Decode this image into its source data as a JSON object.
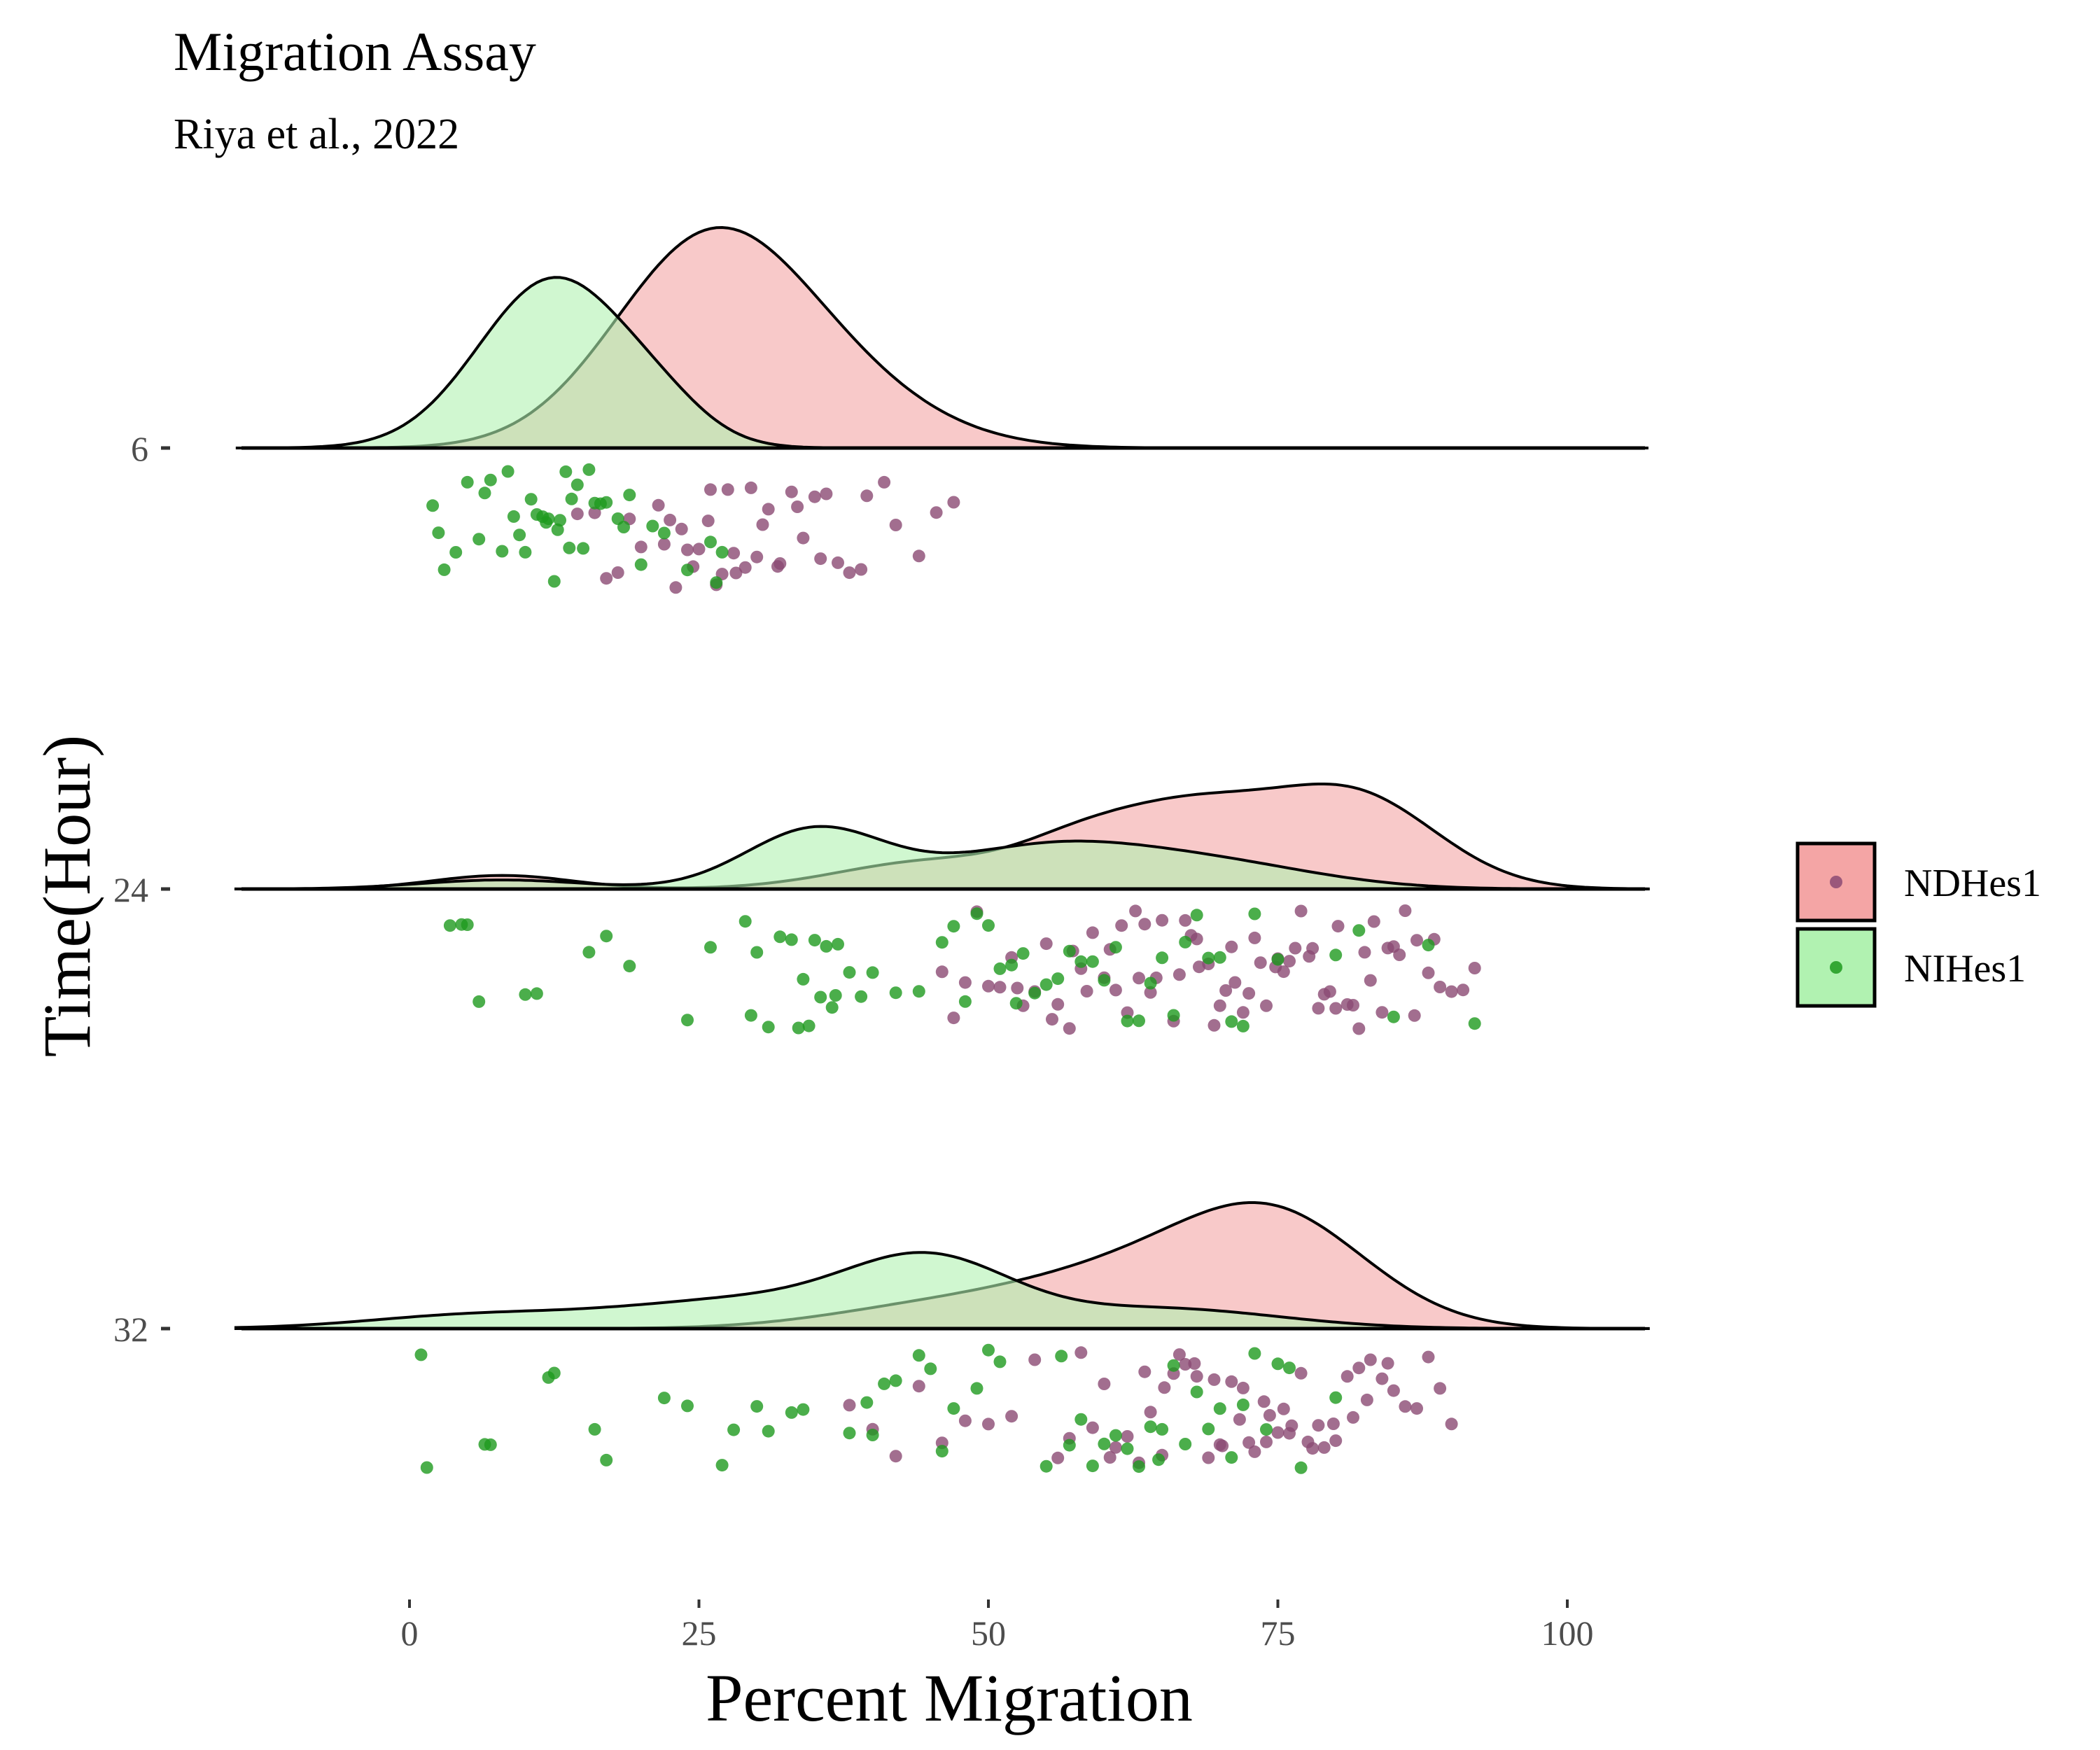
{
  "chart_data": {
    "type": "raincloud",
    "title": "Migration Assay",
    "subtitle": "Riya et al., 2022",
    "xlabel": "Percent Migration",
    "ylabel": "Time(Hour)",
    "xlim": [
      -15,
      107
    ],
    "x_ticks": [
      0,
      25,
      50,
      75,
      100
    ],
    "y_categories": [
      "6",
      "24",
      "32"
    ],
    "legend_position": "right",
    "groups": [
      {
        "name": "NDHes1",
        "fill": "#f4a5a5",
        "point_color": "#8b4a73",
        "density_components": {
          "6": [
            [
              1.0,
              25,
              8
            ],
            [
              0.45,
              34,
              9
            ]
          ],
          "24": [
            [
              0.15,
              8,
              6
            ],
            [
              0.3,
              45,
              8
            ],
            [
              0.9,
              67,
              8
            ],
            [
              0.95,
              82,
              7
            ],
            [
              0.2,
              57,
              5
            ]
          ],
          "32": [
            [
              0.18,
              44,
              9
            ],
            [
              0.55,
              62,
              10
            ],
            [
              1.0,
              75,
              8
            ]
          ]
        },
        "points": {
          "6": [
            20,
            21.5,
            22,
            23,
            24,
            25,
            26,
            27,
            28,
            29,
            30,
            31,
            32,
            33,
            34,
            35,
            36,
            37,
            38,
            39,
            41,
            42,
            44,
            45.5,
            47,
            16,
            17,
            18,
            19,
            22.5,
            24.5,
            27.5,
            29.5,
            33.5,
            14.5,
            23.5,
            26.5,
            30.5,
            35.5,
            39.5,
            25.8,
            28.2,
            31.8
          ],
          "24": [
            46,
            47,
            48,
            49,
            50,
            51,
            52,
            53,
            54,
            55,
            56,
            57,
            58,
            59,
            60,
            61,
            62,
            63,
            64,
            65,
            66,
            67,
            68,
            69,
            70,
            71,
            72,
            73,
            74,
            75,
            76,
            77,
            78,
            79,
            80,
            81,
            82,
            83,
            84,
            85,
            86,
            87,
            88,
            89,
            90,
            91,
            92,
            52.5,
            55.5,
            58.5,
            61.5,
            64.5,
            67.5,
            70.5,
            73.5,
            76.5,
            79.5,
            82.5,
            85.5,
            88.5,
            60.5,
            63.5,
            66.5,
            69.5,
            72.5,
            75.5,
            78.5,
            81.5,
            84.5,
            68.2,
            74.8,
            80.2,
            86.8,
            57.3,
            62.7,
            71.3,
            77.7,
            83.3
          ],
          "32": [
            38,
            40,
            42,
            44,
            46,
            48,
            50,
            52,
            54,
            56,
            57,
            58,
            59,
            60,
            61,
            62,
            63,
            64,
            65,
            66,
            67,
            68,
            69,
            70,
            71,
            72,
            73,
            74,
            75,
            76,
            77,
            78,
            79,
            80,
            81,
            82,
            83,
            84,
            85,
            86,
            87,
            88,
            89,
            90,
            60.5,
            63.5,
            66.5,
            69.5,
            72.5,
            75.5,
            78.5,
            81.5,
            84.5,
            70.2,
            73.8,
            76.2,
            79.8,
            65.2,
            67.8,
            71.7,
            74.3,
            77.6,
            82.7
          ]
        }
      },
      {
        "name": "NIHes1",
        "fill": "#b1f2b1",
        "point_color": "#1e9a1e",
        "density_components": {
          "6": [
            [
              1.0,
              12.5,
              6.5
            ],
            [
              0.12,
              22,
              4
            ]
          ],
          "24": [
            [
              0.1,
              8,
              7
            ],
            [
              0.65,
              35,
              6
            ],
            [
              0.45,
              55,
              9
            ],
            [
              0.25,
              70,
              9
            ]
          ],
          "32": [
            [
              0.12,
              5,
              9
            ],
            [
              0.3,
              30,
              12
            ],
            [
              0.6,
              45,
              7
            ],
            [
              0.2,
              65,
              10
            ]
          ]
        },
        "points": {
          "6": [
            2,
            2.5,
            3,
            4,
            5,
            6,
            7,
            8,
            9,
            10,
            10.5,
            11,
            11.5,
            12,
            12.5,
            13,
            13.5,
            14,
            14.5,
            15,
            15.5,
            16,
            17,
            18,
            19,
            20,
            21,
            22,
            24,
            26,
            27,
            8.5,
            9.5,
            11.8,
            12.8,
            13.8,
            16.5,
            18.5,
            26.5,
            6.5
          ],
          "24": [
            3.5,
            4.5,
            5,
            6,
            10,
            11,
            15.5,
            17,
            19,
            24,
            26,
            29,
            29.5,
            30,
            31,
            32,
            33,
            34,
            34.5,
            35,
            35.5,
            36,
            36.5,
            37,
            38,
            39,
            40,
            42,
            44,
            46,
            47,
            48,
            49,
            50,
            51,
            52,
            53,
            54,
            55,
            56,
            57,
            58,
            59,
            60,
            61,
            62,
            63,
            64,
            65,
            66,
            67,
            68,
            69,
            70,
            71,
            72,
            73,
            75,
            80,
            82,
            85,
            88,
            92,
            36.8,
            33.6,
            52.4
          ],
          "32": [
            1,
            1.5,
            6.5,
            7,
            12,
            12.5,
            16,
            17,
            22,
            24,
            27,
            28,
            30,
            31,
            33,
            34,
            38,
            40,
            41,
            42,
            44,
            45,
            46,
            47,
            49,
            50,
            51,
            55,
            57,
            58,
            59,
            60,
            61,
            62,
            63,
            64,
            65,
            66,
            67,
            68,
            69,
            70,
            71,
            72,
            73,
            74,
            75,
            76,
            77,
            80,
            39.5,
            56.3,
            64.7
          ]
        }
      }
    ]
  }
}
